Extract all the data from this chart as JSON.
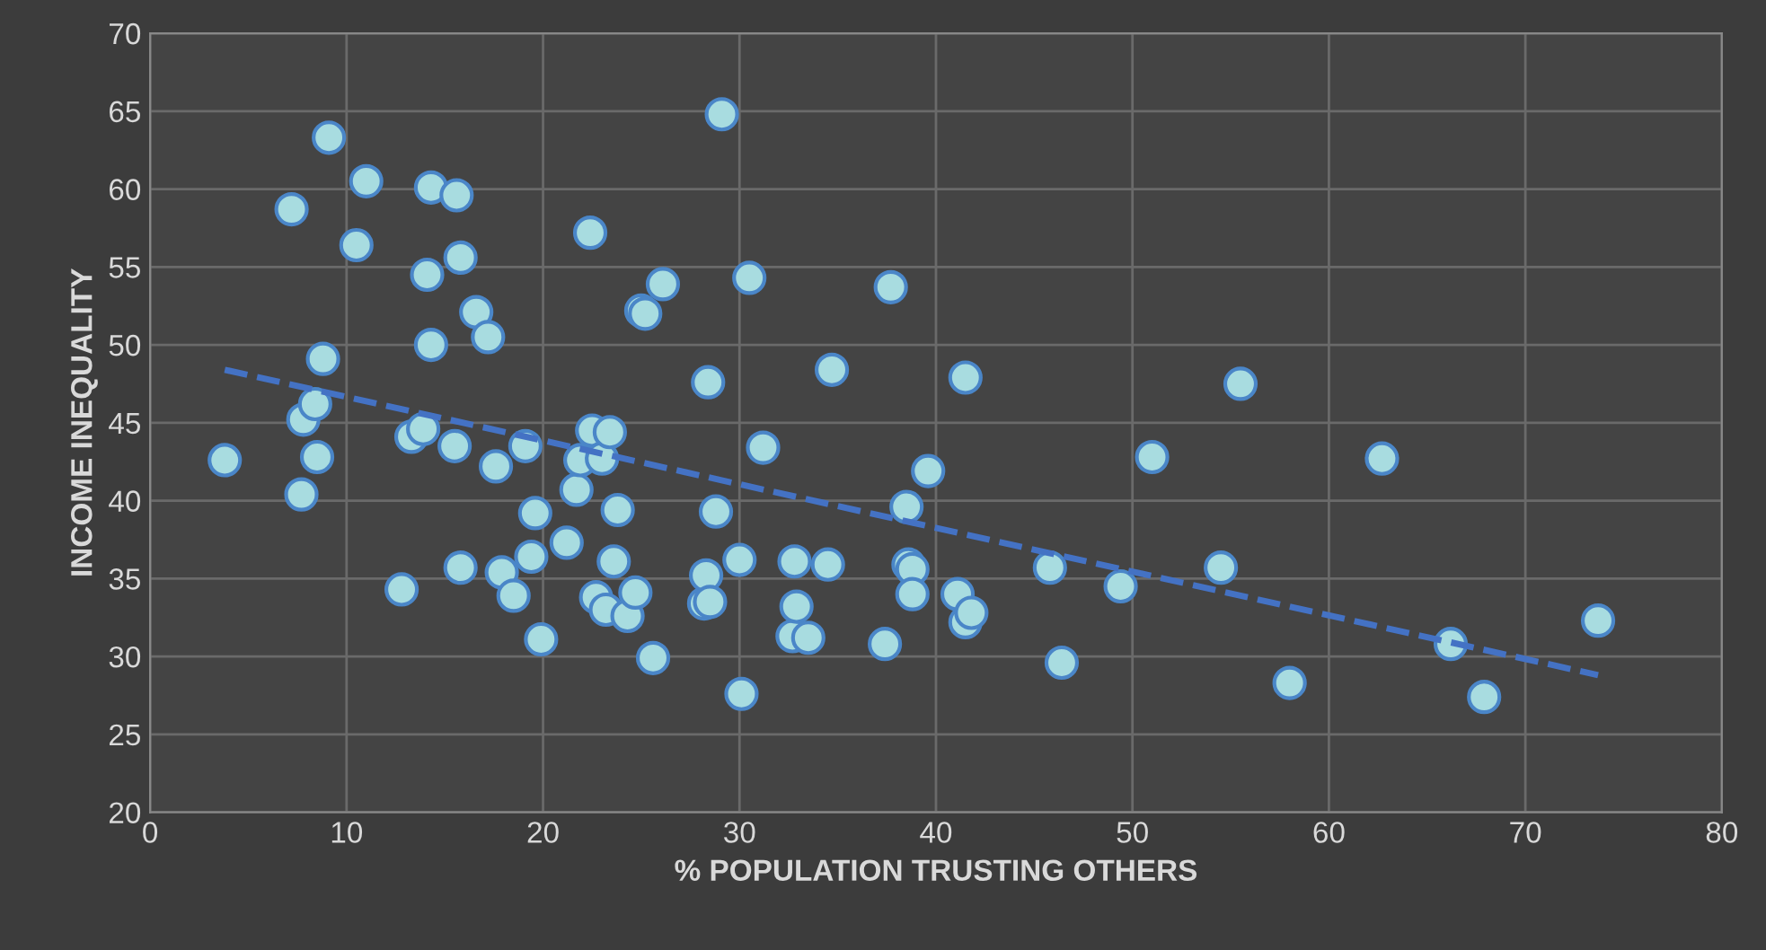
{
  "chart_data": {
    "type": "scatter",
    "xlabel": "% POPULATION TRUSTING OTHERS",
    "ylabel": "INCOME INEQUALITY",
    "xlim": [
      0,
      80
    ],
    "xticks": [
      0,
      10,
      20,
      30,
      40,
      50,
      60,
      70,
      80
    ],
    "ylim": [
      20,
      70
    ],
    "yticks": [
      20,
      25,
      30,
      35,
      40,
      45,
      50,
      55,
      60,
      65,
      70
    ],
    "grid": true,
    "series": [
      {
        "marker": "circle",
        "color": "#a8dce0",
        "x": [
          3.8,
          7.2,
          7.7,
          7.8,
          8.4,
          8.5,
          8.8,
          9.1,
          10.5,
          11.0,
          12.8,
          13.3,
          13.9,
          14.1,
          14.3,
          14.3,
          15.5,
          15.6,
          15.8,
          15.8,
          16.6,
          17.2,
          17.6,
          17.9,
          18.5,
          19.1,
          19.4,
          19.6,
          19.9,
          21.2,
          21.7,
          21.9,
          22.4,
          22.5,
          22.7,
          23.0,
          23.2,
          23.4,
          23.6,
          23.8,
          24.3,
          24.7,
          25.0,
          25.2,
          25.6,
          26.1,
          28.2,
          28.3,
          28.4,
          28.5,
          28.8,
          29.1,
          30.0,
          30.1,
          30.5,
          31.2,
          32.7,
          32.8,
          32.9,
          33.5,
          34.5,
          34.7,
          37.4,
          37.7,
          38.5,
          38.6,
          38.8,
          38.8,
          39.6,
          41.1,
          41.5,
          41.8,
          41.5,
          45.8,
          46.4,
          49.4,
          51.0,
          54.5,
          55.5,
          58.0,
          62.7,
          66.2,
          67.9,
          73.7
        ],
        "values": [
          42.6,
          58.7,
          40.4,
          45.2,
          46.2,
          42.8,
          49.1,
          63.3,
          56.4,
          60.5,
          34.3,
          44.1,
          44.6,
          54.5,
          60.1,
          50.0,
          43.5,
          59.6,
          55.6,
          35.7,
          52.1,
          50.5,
          42.2,
          35.4,
          33.9,
          43.5,
          36.4,
          39.2,
          31.1,
          37.3,
          40.7,
          42.6,
          57.2,
          44.5,
          33.8,
          42.7,
          33.0,
          44.4,
          36.1,
          39.4,
          32.6,
          34.1,
          52.2,
          52.0,
          29.9,
          53.9,
          33.4,
          35.2,
          47.6,
          33.5,
          39.3,
          64.8,
          36.2,
          27.6,
          54.3,
          43.4,
          31.3,
          36.1,
          33.2,
          31.2,
          35.9,
          48.4,
          30.8,
          53.7,
          39.6,
          35.9,
          35.6,
          34.0,
          41.9,
          34.0,
          32.2,
          32.8,
          47.9,
          35.7,
          29.6,
          34.5,
          42.8,
          35.7,
          47.5,
          28.3,
          42.7,
          30.8,
          27.4,
          32.3
        ]
      },
      {
        "type": "line",
        "color": "#4472c4",
        "line_style": "dashed",
        "x": [
          3.8,
          73.7
        ],
        "values": [
          48.4,
          28.8
        ]
      }
    ]
  }
}
